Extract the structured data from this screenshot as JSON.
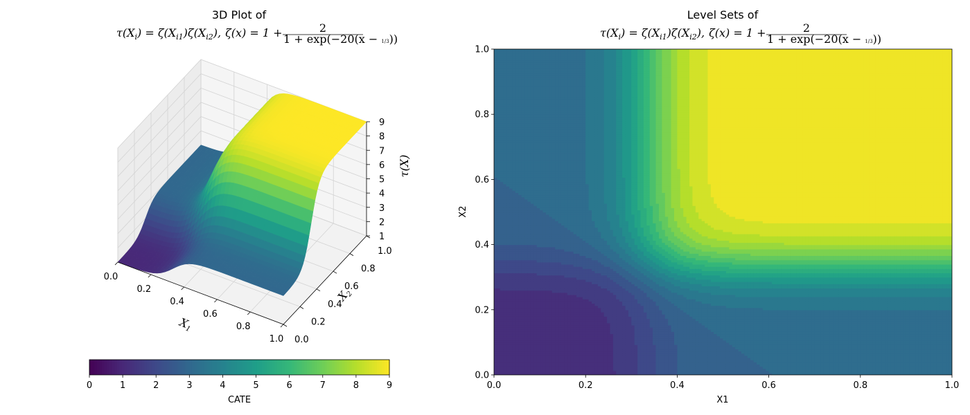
{
  "chart_data": [
    {
      "type": "surface",
      "title_line1": "3D Plot of",
      "formula": {
        "lhs": "τ(X",
        "lhs_sub": "i",
        "eq1": ") = ζ(X",
        "sub_i1": "i1",
        "mid": ")ζ(X",
        "sub_i2": "i2",
        "close": "),",
        "zeta_def": "ζ(x) = 1 +",
        "frac_num": "2",
        "frac_den": "1 + exp(−20(x − ",
        "frac_third": "1/3",
        "frac_end": "))"
      },
      "function": "tau = zeta(x1) * zeta(x2), zeta(x) = 1 + 2/(1 + exp(-20(x - 1/3)))",
      "xlabel": "X",
      "xlabel_sub": "1",
      "ylabel": "X",
      "ylabel_sub": "2",
      "zlabel": "τ(X)",
      "x_ticks": [
        "0.0",
        "0.2",
        "0.4",
        "0.6",
        "0.8",
        "1.0"
      ],
      "y_ticks": [
        "0.0",
        "0.2",
        "0.4",
        "0.6",
        "0.8",
        "1.0"
      ],
      "z_ticks": [
        "1",
        "2",
        "3",
        "4",
        "5",
        "6",
        "7",
        "8",
        "9"
      ],
      "xlim": [
        0,
        1
      ],
      "ylim": [
        0,
        1
      ],
      "zlim": [
        1,
        9
      ],
      "colormap": "viridis",
      "grid": true
    },
    {
      "type": "contour_filled",
      "title_line1": "Level Sets of",
      "xlabel": "X1",
      "ylabel": "X2",
      "x_ticks": [
        "0.0",
        "0.2",
        "0.4",
        "0.6",
        "0.8",
        "1.0"
      ],
      "y_ticks": [
        "0.0",
        "0.2",
        "0.4",
        "0.6",
        "0.8",
        "1.0"
      ],
      "xlim": [
        0,
        1
      ],
      "ylim": [
        0,
        1
      ],
      "colormap": "viridis",
      "color_range": [
        0,
        9
      ]
    }
  ],
  "colorbar": {
    "label": "CATE",
    "range": [
      0,
      9
    ],
    "ticks": [
      "0",
      "1",
      "2",
      "3",
      "4",
      "5",
      "6",
      "7",
      "8",
      "9"
    ],
    "orientation": "horizontal",
    "placement": "below left plot"
  },
  "colors": {
    "viridis_stops": [
      "#440154",
      "#482878",
      "#3e4989",
      "#31688e",
      "#26828e",
      "#1f9e89",
      "#35b779",
      "#6ece58",
      "#b5de2b",
      "#fde725"
    ]
  }
}
